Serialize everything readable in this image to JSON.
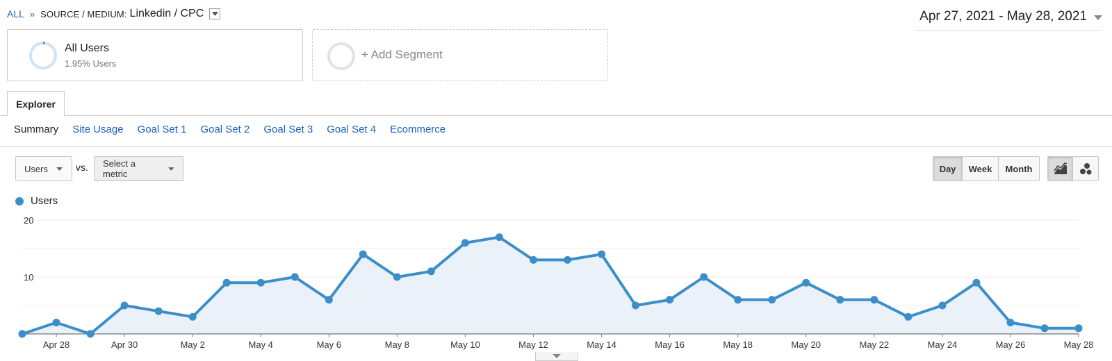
{
  "breadcrumb": {
    "all": "ALL",
    "separator": "»",
    "dimension": "SOURCE / MEDIUM:",
    "value": "Linkedin / CPC"
  },
  "date_range": "Apr 27, 2021 - May 28, 2021",
  "segments": {
    "all_users": {
      "title": "All Users",
      "subtitle": "1.95% Users"
    },
    "add_segment": "+ Add Segment"
  },
  "tabs": {
    "explorer": "Explorer"
  },
  "subtabs": [
    "Summary",
    "Site Usage",
    "Goal Set 1",
    "Goal Set 2",
    "Goal Set 3",
    "Goal Set 4",
    "Ecommerce"
  ],
  "metric": {
    "primary": "Users",
    "vs": "vs.",
    "secondary": "Select a metric"
  },
  "granularity": {
    "day": "Day",
    "week": "Week",
    "month": "Month",
    "selected": "Day"
  },
  "chart_type_toggle": {
    "line_icon": "line-chart-icon",
    "motion_icon": "motion-chart-icon",
    "selected": "line"
  },
  "colors": {
    "series": "#3c8ec9",
    "area": "#eaf1f9",
    "link": "#1a62c2"
  },
  "chart_data": {
    "type": "area",
    "series": [
      {
        "name": "Users",
        "values": [
          0,
          2,
          0,
          5,
          4,
          3,
          9,
          9,
          10,
          6,
          14,
          10,
          11,
          16,
          17,
          13,
          13,
          14,
          5,
          6,
          10,
          6,
          6,
          9,
          6,
          6,
          3,
          5,
          9,
          2,
          1,
          1
        ]
      }
    ],
    "x": [
      "Apr 27",
      "Apr 28",
      "Apr 29",
      "Apr 30",
      "May 1",
      "May 2",
      "May 3",
      "May 4",
      "May 5",
      "May 6",
      "May 7",
      "May 8",
      "May 9",
      "May 10",
      "May 11",
      "May 12",
      "May 13",
      "May 14",
      "May 15",
      "May 16",
      "May 17",
      "May 18",
      "May 19",
      "May 20",
      "May 21",
      "May 22",
      "May 23",
      "May 24",
      "May 25",
      "May 26",
      "May 27",
      "May 28"
    ],
    "xtick_labels": [
      "Apr 28",
      "Apr 30",
      "May 2",
      "May 4",
      "May 6",
      "May 8",
      "May 10",
      "May 12",
      "May 14",
      "May 16",
      "May 18",
      "May 20",
      "May 22",
      "May 24",
      "May 26",
      "May 28"
    ],
    "yticks": [
      10,
      20
    ],
    "ylim": [
      0,
      20
    ],
    "grid": true,
    "legend": "top-left"
  }
}
